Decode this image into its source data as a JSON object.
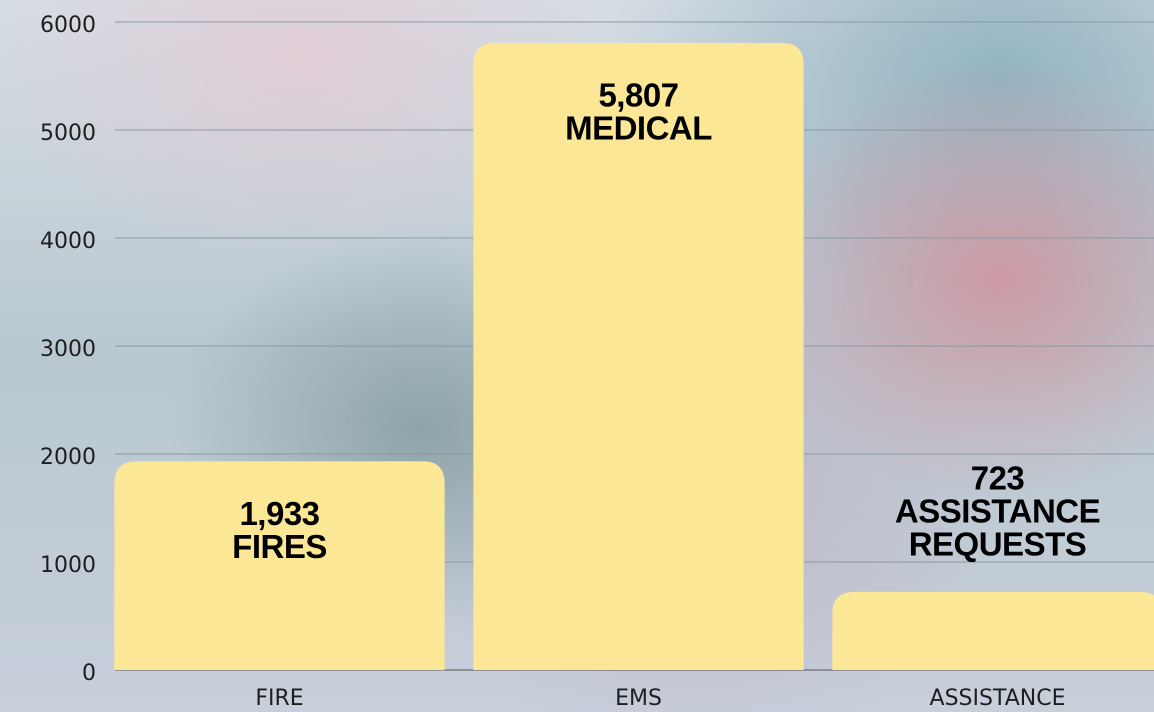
{
  "chart_data": {
    "type": "bar",
    "categories": [
      "FIRE",
      "EMS",
      "ASSISTANCE"
    ],
    "values": [
      1933,
      5807,
      723
    ],
    "value_labels": [
      "1,933",
      "5,807",
      "723"
    ],
    "value_captions": [
      [
        "FIRES"
      ],
      [
        "MEDICAL"
      ],
      [
        "ASSISTANCE",
        "REQUESTS"
      ]
    ],
    "color": "#fce796",
    "ylim": [
      0,
      6000
    ],
    "yticks": [
      0,
      1000,
      2000,
      3000,
      4000,
      5000,
      6000
    ],
    "grid": true
  }
}
